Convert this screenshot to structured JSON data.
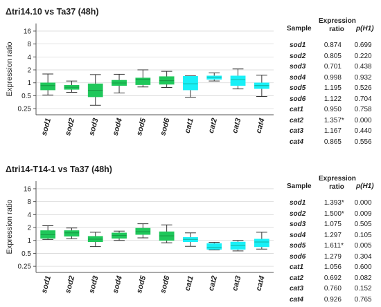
{
  "chart_data": [
    {
      "type": "box",
      "title": "Δtri14.10 vs Ta37 (48h)",
      "ylabel": "Expression ratio",
      "yscale": "log2",
      "ylim": [
        0.18,
        24
      ],
      "yticks": [
        16,
        8,
        4,
        2,
        1,
        0.5,
        0.25
      ],
      "ytick_labels": [
        "16",
        "8",
        "4",
        "2",
        "1",
        "0.5",
        "0.25"
      ],
      "categories": [
        "sod1",
        "sod2",
        "sod3",
        "sod4",
        "sod5",
        "sod6",
        "cat1",
        "cat2",
        "cat3",
        "cat4"
      ],
      "boxes": [
        {
          "whisker_low": 0.52,
          "q1": 0.68,
          "median": 0.86,
          "q3": 1.0,
          "whisker_high": 1.6
        },
        {
          "whisker_low": 0.6,
          "q1": 0.7,
          "median": 0.79,
          "q3": 0.88,
          "whisker_high": 1.1
        },
        {
          "whisker_low": 0.3,
          "q1": 0.47,
          "median": 0.67,
          "q3": 0.95,
          "whisker_high": 1.55
        },
        {
          "whisker_low": 0.58,
          "q1": 0.86,
          "median": 0.99,
          "q3": 1.15,
          "whisker_high": 1.58
        },
        {
          "whisker_low": 0.8,
          "q1": 0.9,
          "median": 1.2,
          "q3": 1.3,
          "whisker_high": 2.0
        },
        {
          "whisker_low": 0.78,
          "q1": 0.92,
          "median": 1.12,
          "q3": 1.4,
          "whisker_high": 1.85
        },
        {
          "whisker_low": 0.46,
          "q1": 0.68,
          "median": 0.95,
          "q3": 1.42,
          "whisker_high": 1.45
        },
        {
          "whisker_low": 1.1,
          "q1": 1.2,
          "median": 1.36,
          "q3": 1.45,
          "whisker_high": 1.7
        },
        {
          "whisker_low": 0.72,
          "q1": 0.86,
          "median": 1.17,
          "q3": 1.45,
          "whisker_high": 2.1
        },
        {
          "whisker_low": 0.48,
          "q1": 0.73,
          "median": 0.86,
          "q3": 1.0,
          "whisker_high": 1.5
        }
      ],
      "table": {
        "headers": [
          "Sample",
          "Expression ratio",
          "p(H1)"
        ],
        "rows": [
          [
            "sod1",
            "0.874",
            "0.699"
          ],
          [
            "sod2",
            "0.805",
            "0.220"
          ],
          [
            "sod3",
            "0.701",
            "0.438"
          ],
          [
            "sod4",
            "0.998",
            "0.932"
          ],
          [
            "sod5",
            "1.195",
            "0.526"
          ],
          [
            "sod6",
            "1.122",
            "0.704"
          ],
          [
            "cat1",
            "0.950",
            "0.758"
          ],
          [
            "cat2",
            "1.357*",
            "0.000"
          ],
          [
            "cat3",
            "1.167",
            "0.440"
          ],
          [
            "cat4",
            "0.865",
            "0.556"
          ]
        ]
      }
    },
    {
      "type": "box",
      "title": "Δtri14-T14-1 vs Ta37 (48h)",
      "ylabel": "Expression ratio",
      "yscale": "log2",
      "ylim": [
        0.18,
        24
      ],
      "yticks": [
        16,
        8,
        4,
        2,
        1,
        0.5,
        0.25
      ],
      "ytick_labels": [
        "16",
        "8",
        "4",
        "2",
        "1",
        "0.5",
        "0.25"
      ],
      "categories": [
        "sod1",
        "sod2",
        "sod3",
        "sod4",
        "sod5",
        "sod6",
        "cat1",
        "cat2",
        "cat3",
        "cat4"
      ],
      "boxes": [
        {
          "whisker_low": 1.05,
          "q1": 1.12,
          "median": 1.35,
          "q3": 1.7,
          "whisker_high": 2.2
        },
        {
          "whisker_low": 1.1,
          "q1": 1.25,
          "median": 1.5,
          "q3": 1.7,
          "whisker_high": 1.95
        },
        {
          "whisker_low": 0.72,
          "q1": 0.93,
          "median": 1.07,
          "q3": 1.25,
          "whisker_high": 1.55
        },
        {
          "whisker_low": 1.0,
          "q1": 1.12,
          "median": 1.3,
          "q3": 1.5,
          "whisker_high": 1.65
        },
        {
          "whisker_low": 1.15,
          "q1": 1.37,
          "median": 1.6,
          "q3": 1.93,
          "whisker_high": 2.45
        },
        {
          "whisker_low": 0.88,
          "q1": 1.0,
          "median": 1.28,
          "q3": 1.6,
          "whisker_high": 2.3
        },
        {
          "whisker_low": 0.73,
          "q1": 0.93,
          "median": 1.06,
          "q3": 1.18,
          "whisker_high": 1.5
        },
        {
          "whisker_low": 0.6,
          "q1": 0.62,
          "median": 0.69,
          "q3": 0.85,
          "whisker_high": 0.9
        },
        {
          "whisker_low": 0.57,
          "q1": 0.62,
          "median": 0.76,
          "q3": 0.92,
          "whisker_high": 1.0
        },
        {
          "whisker_low": 0.63,
          "q1": 0.71,
          "median": 0.92,
          "q3": 1.08,
          "whisker_high": 1.55
        }
      ],
      "table": {
        "headers": [
          "Sample",
          "Expression ratio",
          "p(H1)"
        ],
        "rows": [
          [
            "sod1",
            "1.393*",
            "0.000"
          ],
          [
            "sod2",
            "1.500*",
            "0.009"
          ],
          [
            "sod3",
            "1.075",
            "0.505"
          ],
          [
            "sod4",
            "1.297",
            "0.105"
          ],
          [
            "sod5",
            "1.611*",
            "0.005"
          ],
          [
            "sod6",
            "1.279",
            "0.304"
          ],
          [
            "cat1",
            "1.056",
            "0.600"
          ],
          [
            "cat2",
            "0.692",
            "0.082"
          ],
          [
            "cat3",
            "0.760",
            "0.152"
          ],
          [
            "cat4",
            "0.926",
            "0.765"
          ]
        ]
      }
    }
  ],
  "colors": {
    "sod_fill": "#1fc75a",
    "cat_fill": "#19f0f7",
    "axis": "#555555",
    "grid": "#d8d8d8"
  }
}
